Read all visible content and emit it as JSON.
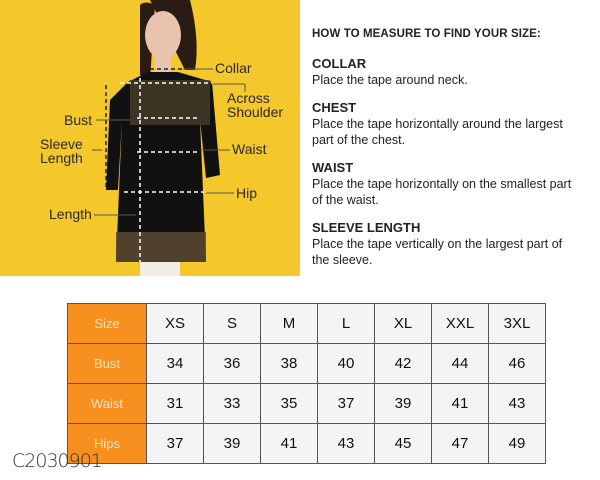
{
  "figure": {
    "labels": {
      "collar": "Collar",
      "across_shoulder_1": "Across",
      "across_shoulder_2": "Shoulder",
      "bust": "Bust",
      "sleeve_1": "Sleeve",
      "sleeve_2": "Length",
      "waist": "Waist",
      "hip": "Hip",
      "length": "Length"
    },
    "background_color": "#f4c72a"
  },
  "guide": {
    "title": "HOW TO MEASURE TO FIND YOUR SIZE:",
    "sections": [
      {
        "heading": "COLLAR",
        "text": "Place the tape around neck."
      },
      {
        "heading": "CHEST",
        "text": "Place the tape horizontally around the largest part of the chest."
      },
      {
        "heading": "WAIST",
        "text": "Place the tape horizontally on the smallest part of the waist."
      },
      {
        "heading": "SLEEVE LENGTH",
        "text": "Place the tape vertically on the largest part of the sleeve."
      }
    ]
  },
  "size_table": {
    "header_color": "#f7901e",
    "rows": [
      {
        "label": "Size",
        "values": [
          "XS",
          "S",
          "M",
          "L",
          "XL",
          "XXL",
          "3XL"
        ]
      },
      {
        "label": "Bust",
        "values": [
          "34",
          "36",
          "38",
          "40",
          "42",
          "44",
          "46"
        ]
      },
      {
        "label": "Waist",
        "values": [
          "31",
          "33",
          "35",
          "37",
          "39",
          "41",
          "43"
        ]
      },
      {
        "label": "Hips",
        "values": [
          "37",
          "39",
          "41",
          "43",
          "45",
          "47",
          "49"
        ]
      }
    ]
  },
  "product_code": "C2030901"
}
